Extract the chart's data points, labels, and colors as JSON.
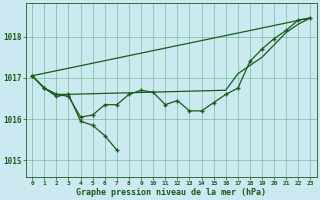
{
  "bg_color": "#cce8f0",
  "grid_color": "#44aa66",
  "line_color": "#1a5c1a",
  "xlabel": "Graphe pression niveau de la mer (hPa)",
  "ylim": [
    1014.6,
    1018.8
  ],
  "yticks": [
    1015,
    1016,
    1017,
    1018
  ],
  "xticks": [
    0,
    1,
    2,
    3,
    4,
    5,
    6,
    7,
    8,
    9,
    10,
    11,
    12,
    13,
    14,
    15,
    16,
    17,
    18,
    19,
    20,
    21,
    22,
    23
  ],
  "line_straight": [
    [
      0,
      23
    ],
    [
      1017.05,
      1018.45
    ]
  ],
  "line_smooth_upper": {
    "x": [
      0,
      1,
      2,
      3,
      16,
      17,
      18,
      19,
      20,
      21,
      22,
      23
    ],
    "y": [
      1017.05,
      1016.75,
      1016.6,
      1016.6,
      1016.7,
      1017.1,
      1017.3,
      1017.5,
      1017.8,
      1018.1,
      1018.3,
      1018.45
    ]
  },
  "line_main": {
    "x": [
      0,
      1,
      2,
      3,
      4,
      5,
      6,
      7,
      8,
      9,
      10,
      11,
      12,
      13,
      14,
      15,
      16,
      17,
      18,
      19,
      20,
      21,
      22,
      23
    ],
    "y": [
      1017.05,
      1016.75,
      1016.6,
      1016.55,
      1016.05,
      1016.1,
      1016.35,
      1016.35,
      1016.6,
      1016.7,
      1016.65,
      1016.35,
      1016.45,
      1016.2,
      1016.2,
      1016.4,
      1016.6,
      1016.75,
      1017.4,
      1017.7,
      1017.95,
      1018.15,
      1018.4,
      1018.45
    ]
  },
  "line_jagged": {
    "x": [
      0,
      1,
      2,
      3,
      4,
      5,
      6,
      7
    ],
    "y": [
      1017.05,
      1016.75,
      1016.55,
      1016.6,
      1015.95,
      1015.85,
      1015.6,
      1015.25
    ]
  },
  "figsize": [
    3.2,
    2.0
  ],
  "dpi": 100
}
